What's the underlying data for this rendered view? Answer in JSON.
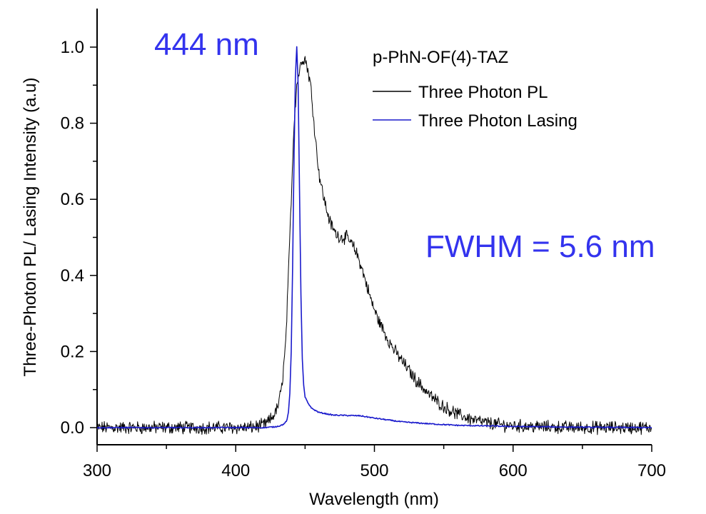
{
  "chart_data": {
    "type": "line",
    "title": "",
    "xlabel": "Wavelength (nm)",
    "ylabel": "Three-Photon PL/ Lasing Intensity (a.u)",
    "xlim": [
      300,
      700
    ],
    "ylim": [
      -0.04,
      1.1
    ],
    "x_ticks": [
      300,
      400,
      500,
      600,
      700
    ],
    "y_ticks": [
      0.0,
      0.2,
      0.4,
      0.6,
      0.8,
      1.0
    ],
    "x_tick_labels": [
      "300",
      "400",
      "500",
      "600",
      "700"
    ],
    "y_tick_labels": [
      "0.0",
      "0.2",
      "0.4",
      "0.6",
      "0.8",
      "1.0"
    ],
    "grid": false,
    "legend": {
      "placement": "top-right",
      "title": "p-PhN-OF(4)-TAZ"
    },
    "annotations": [
      {
        "text": "444 nm",
        "color": "#3333ee"
      },
      {
        "text": "FWHM = 5.6 nm",
        "color": "#3333ee"
      }
    ],
    "series": [
      {
        "name": "Three Photon PL",
        "color": "#000000",
        "points": [
          [
            300,
            0.0
          ],
          [
            320,
            0.0
          ],
          [
            340,
            0.0
          ],
          [
            360,
            0.0
          ],
          [
            380,
            0.0
          ],
          [
            400,
            0.0
          ],
          [
            410,
            0.0
          ],
          [
            418,
            0.005
          ],
          [
            422,
            0.01
          ],
          [
            426,
            0.025
          ],
          [
            430,
            0.05
          ],
          [
            433,
            0.1
          ],
          [
            436,
            0.22
          ],
          [
            438,
            0.4
          ],
          [
            440,
            0.6
          ],
          [
            442,
            0.8
          ],
          [
            444,
            0.9
          ],
          [
            446,
            0.94
          ],
          [
            448,
            0.97
          ],
          [
            450,
            0.97
          ],
          [
            452,
            0.94
          ],
          [
            454,
            0.9
          ],
          [
            456,
            0.82
          ],
          [
            458,
            0.74
          ],
          [
            460,
            0.67
          ],
          [
            462,
            0.63
          ],
          [
            465,
            0.58
          ],
          [
            468,
            0.54
          ],
          [
            472,
            0.51
          ],
          [
            476,
            0.5
          ],
          [
            480,
            0.5
          ],
          [
            484,
            0.48
          ],
          [
            487,
            0.46
          ],
          [
            490,
            0.43
          ],
          [
            494,
            0.38
          ],
          [
            498,
            0.33
          ],
          [
            502,
            0.29
          ],
          [
            506,
            0.26
          ],
          [
            510,
            0.23
          ],
          [
            515,
            0.2
          ],
          [
            520,
            0.175
          ],
          [
            525,
            0.15
          ],
          [
            530,
            0.125
          ],
          [
            535,
            0.105
          ],
          [
            540,
            0.085
          ],
          [
            545,
            0.07
          ],
          [
            550,
            0.055
          ],
          [
            555,
            0.045
          ],
          [
            560,
            0.035
          ],
          [
            570,
            0.022
          ],
          [
            580,
            0.013
          ],
          [
            590,
            0.008
          ],
          [
            600,
            0.005
          ],
          [
            620,
            0.002
          ],
          [
            650,
            0.0
          ],
          [
            680,
            0.0
          ],
          [
            700,
            0.0
          ]
        ]
      },
      {
        "name": "Three Photon Lasing",
        "color": "#1a1acc",
        "points": [
          [
            300,
            0.0
          ],
          [
            350,
            0.0
          ],
          [
            400,
            0.0
          ],
          [
            420,
            0.0
          ],
          [
            428,
            0.002
          ],
          [
            432,
            0.005
          ],
          [
            435,
            0.01
          ],
          [
            437,
            0.02
          ],
          [
            438,
            0.04
          ],
          [
            439,
            0.09
          ],
          [
            440,
            0.2
          ],
          [
            441,
            0.42
          ],
          [
            442,
            0.7
          ],
          [
            443,
            0.92
          ],
          [
            444,
            1.0
          ],
          [
            445,
            0.9
          ],
          [
            446,
            0.62
          ],
          [
            447,
            0.35
          ],
          [
            448,
            0.18
          ],
          [
            449,
            0.11
          ],
          [
            450,
            0.08
          ],
          [
            452,
            0.065
          ],
          [
            455,
            0.05
          ],
          [
            460,
            0.04
          ],
          [
            470,
            0.033
          ],
          [
            480,
            0.032
          ],
          [
            490,
            0.031
          ],
          [
            500,
            0.025
          ],
          [
            520,
            0.015
          ],
          [
            540,
            0.01
          ],
          [
            560,
            0.006
          ],
          [
            600,
            0.003
          ],
          [
            650,
            0.001
          ],
          [
            700,
            0.0
          ]
        ]
      }
    ]
  }
}
